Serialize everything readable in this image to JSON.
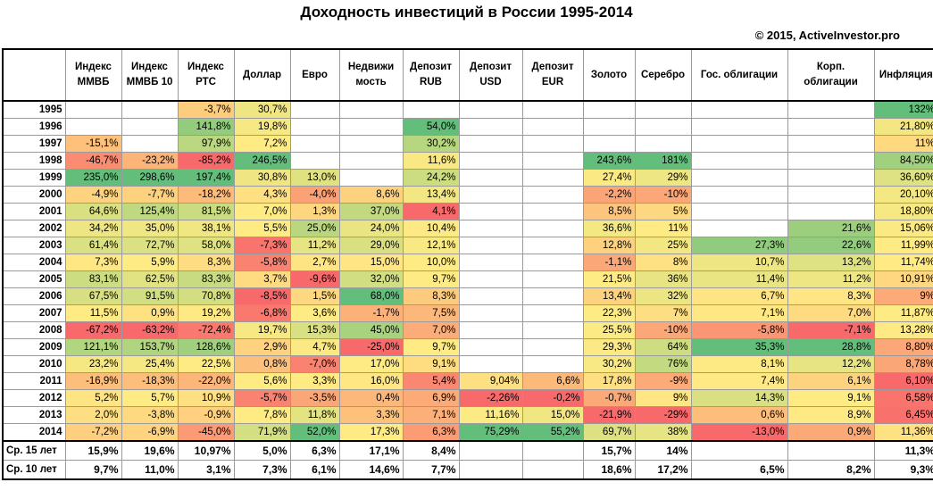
{
  "title": "Доходность инвестиций в России 1995-2014",
  "copyright": "© 2015, ActiveInvestor.pro",
  "chart_data": {
    "type": "table",
    "columns": [
      "",
      "Индекс ММВБ",
      "Индекс ММВБ 10",
      "Индекс РТС",
      "Доллар",
      "Евро",
      "Недвижимость",
      "Депозит RUB",
      "Депозит USD",
      "Депозит EUR",
      "Золото",
      "Серебро",
      "Гос. облигации",
      "Корп. облигации",
      "Инфляция"
    ],
    "column_headers": [
      [
        "Индекс",
        "ММВБ"
      ],
      [
        "Индекс",
        "ММВБ 10"
      ],
      [
        "Индекс",
        "РТС"
      ],
      [
        "Доллар"
      ],
      [
        "Евро"
      ],
      [
        "Недвижи",
        "мость"
      ],
      [
        "Депозит",
        "RUB"
      ],
      [
        "Депозит",
        "USD"
      ],
      [
        "Депозит",
        "EUR"
      ],
      [
        "Золото"
      ],
      [
        "Серебро"
      ],
      [
        "Гос. облигации"
      ],
      [
        "Корп.",
        "облигации"
      ],
      [
        "Инфляция"
      ]
    ],
    "rows": [
      {
        "year": "1995",
        "values": [
          "",
          "",
          "-3,7%",
          "30,7%",
          "",
          "",
          "",
          "",
          "",
          "",
          "",
          "",
          "",
          "132%"
        ]
      },
      {
        "year": "1996",
        "values": [
          "",
          "",
          "141,8%",
          "19,8%",
          "",
          "",
          "54,0%",
          "",
          "",
          "",
          "",
          "",
          "",
          "21,80%"
        ]
      },
      {
        "year": "1997",
        "values": [
          "-15,1%",
          "",
          "97,9%",
          "7,2%",
          "",
          "",
          "30,2%",
          "",
          "",
          "",
          "",
          "",
          "",
          "11%"
        ]
      },
      {
        "year": "1998",
        "values": [
          "-46,7%",
          "-23,2%",
          "-85,2%",
          "246,5%",
          "",
          "",
          "11,6%",
          "",
          "",
          "243,6%",
          "181%",
          "",
          "",
          "84,50%"
        ]
      },
      {
        "year": "1999",
        "values": [
          "235,0%",
          "298,6%",
          "197,4%",
          "30,8%",
          "13,0%",
          "",
          "24,2%",
          "",
          "",
          "27,4%",
          "29%",
          "",
          "",
          "36,60%"
        ]
      },
      {
        "year": "2000",
        "values": [
          "-4,9%",
          "-7,7%",
          "-18,2%",
          "4,3%",
          "-4,0%",
          "8,6%",
          "13,4%",
          "",
          "",
          "-2,2%",
          "-10%",
          "",
          "",
          "20,10%"
        ]
      },
      {
        "year": "2001",
        "values": [
          "64,6%",
          "125,4%",
          "81,5%",
          "7,0%",
          "1,3%",
          "37,0%",
          "4,1%",
          "",
          "",
          "8,5%",
          "5%",
          "",
          "",
          "18,80%"
        ]
      },
      {
        "year": "2002",
        "values": [
          "34,2%",
          "35,0%",
          "38,1%",
          "5,5%",
          "25,0%",
          "24,0%",
          "10,4%",
          "",
          "",
          "36,6%",
          "11%",
          "",
          "21,6%",
          "15,06%"
        ]
      },
      {
        "year": "2003",
        "values": [
          "61,4%",
          "72,7%",
          "58,0%",
          "-7,3%",
          "11,2%",
          "29,0%",
          "12,1%",
          "",
          "",
          "12,8%",
          "25%",
          "27,3%",
          "22,6%",
          "11,99%"
        ]
      },
      {
        "year": "2004",
        "values": [
          "7,3%",
          "5,9%",
          "8,3%",
          "-5,8%",
          "2,7%",
          "15,0%",
          "10,0%",
          "",
          "",
          "-1,1%",
          "8%",
          "10,7%",
          "13,2%",
          "11,74%"
        ]
      },
      {
        "year": "2005",
        "values": [
          "83,1%",
          "62,5%",
          "83,3%",
          "3,7%",
          "-9,6%",
          "32,0%",
          "9,7%",
          "",
          "",
          "21,5%",
          "36%",
          "11,4%",
          "11,2%",
          "10,91%"
        ]
      },
      {
        "year": "2006",
        "values": [
          "67,5%",
          "91,5%",
          "70,8%",
          "-8,5%",
          "1,5%",
          "68,0%",
          "8,3%",
          "",
          "",
          "13,4%",
          "32%",
          "6,7%",
          "8,3%",
          "9%"
        ]
      },
      {
        "year": "2007",
        "values": [
          "11,5%",
          "0,9%",
          "19,2%",
          "-6,8%",
          "3,6%",
          "-1,7%",
          "7,5%",
          "",
          "",
          "22,3%",
          "7%",
          "7,1%",
          "7,0%",
          "11,87%"
        ]
      },
      {
        "year": "2008",
        "values": [
          "-67,2%",
          "-63,2%",
          "-72,4%",
          "19,7%",
          "15,3%",
          "45,0%",
          "7,0%",
          "",
          "",
          "25,5%",
          "-10%",
          "-5,8%",
          "-7,1%",
          "13,28%"
        ]
      },
      {
        "year": "2009",
        "values": [
          "121,1%",
          "153,7%",
          "128,6%",
          "2,9%",
          "4,7%",
          "-25,0%",
          "9,7%",
          "",
          "",
          "29,3%",
          "64%",
          "35,3%",
          "28,8%",
          "8,80%"
        ]
      },
      {
        "year": "2010",
        "values": [
          "23,2%",
          "25,4%",
          "22,5%",
          "0,8%",
          "-7,0%",
          "17,0%",
          "9,1%",
          "",
          "",
          "30,2%",
          "76%",
          "8,1%",
          "12,2%",
          "8,78%"
        ]
      },
      {
        "year": "2011",
        "values": [
          "-16,9%",
          "-18,3%",
          "-22,0%",
          "5,6%",
          "3,3%",
          "16,0%",
          "5,4%",
          "9,04%",
          "6,6%",
          "17,8%",
          "-9%",
          "7,4%",
          "6,1%",
          "6,10%"
        ]
      },
      {
        "year": "2012",
        "values": [
          "5,2%",
          "5,7%",
          "10,9%",
          "-5,7%",
          "-3,5%",
          "0,4%",
          "6,9%",
          "-2,26%",
          "-0,2%",
          "-0,7%",
          "9%",
          "14,3%",
          "9,1%",
          "6,58%"
        ]
      },
      {
        "year": "2013",
        "values": [
          "2,0%",
          "-3,8%",
          "-0,9%",
          "7,8%",
          "11,8%",
          "3,3%",
          "7,1%",
          "11,16%",
          "15,0%",
          "-21,9%",
          "-29%",
          "0,6%",
          "8,9%",
          "6,45%"
        ]
      },
      {
        "year": "2014",
        "values": [
          "-7,2%",
          "-6,9%",
          "-45,0%",
          "71,9%",
          "52,0%",
          "17,3%",
          "6,3%",
          "75,29%",
          "55,2%",
          "69,7%",
          "38%",
          "-13,0%",
          "0,9%",
          "11,36%"
        ]
      }
    ],
    "averages": [
      {
        "label": "Ср. 15 лет",
        "values": [
          "15,9%",
          "19,6%",
          "10,97%",
          "5,0%",
          "6,3%",
          "17,1%",
          "8,4%",
          "",
          "",
          "15,7%",
          "14%",
          "",
          "",
          "11,3%"
        ]
      },
      {
        "label": "Ср. 10 лет",
        "values": [
          "9,7%",
          "11,0%",
          "3,1%",
          "7,3%",
          "6,1%",
          "14,6%",
          "7,7%",
          "",
          "",
          "18,6%",
          "17,2%",
          "6,5%",
          "8,2%",
          "9,3%"
        ]
      }
    ],
    "color_scale": {
      "low": "#f8696b",
      "mid": "#ffeb84",
      "high": "#63be7b"
    }
  }
}
